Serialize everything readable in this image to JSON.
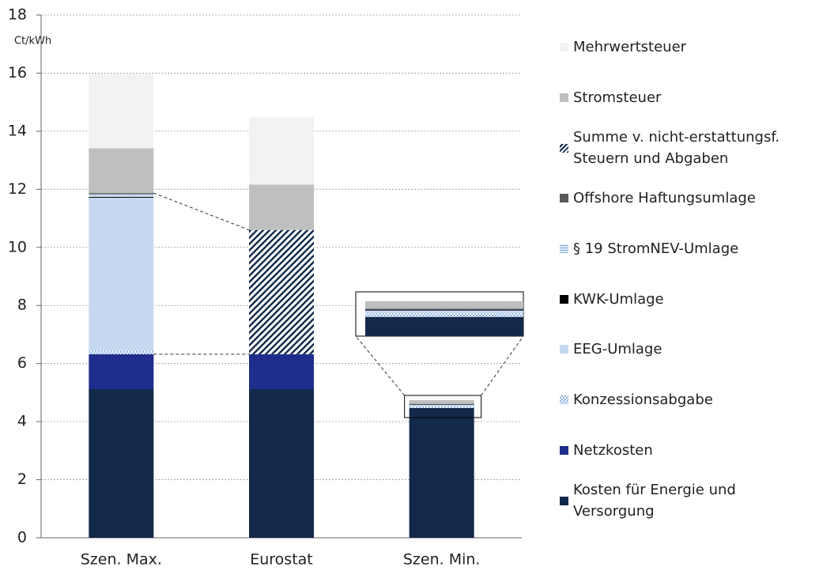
{
  "chart_data": {
    "type": "stacked-bar",
    "y_label": "Ct/kWh",
    "categories": [
      "Szen. Max.",
      "Eurostat",
      "Szen. Min."
    ],
    "series": [
      {
        "name": "Kosten für Energie und Versorgung",
        "color": "#13294b",
        "values": [
          5.12,
          5.12,
          4.47
        ]
      },
      {
        "name": "Netzkosten",
        "color": "#1f2e8c",
        "values": [
          1.2,
          1.2,
          null
        ]
      },
      {
        "name": "Konzessionsabgabe",
        "color": "#8db4e2",
        "pattern": "checker",
        "values": [
          0.11,
          null,
          0.06
        ]
      },
      {
        "name": "EEG-Umlage",
        "color": "#c6d9f0",
        "values": [
          5.28,
          null,
          0.05
        ]
      },
      {
        "name": "KWK-Umlage",
        "color": "#000000",
        "values": [
          0.03,
          null,
          0.02
        ]
      },
      {
        "name": "§ 19 StromNEV-Umlage",
        "color": "#8db4e2",
        "pattern": "dots",
        "values": [
          0.09,
          null,
          0.01
        ]
      },
      {
        "name": "Offshore Haftungsumlage",
        "color": "#595959",
        "values": [
          0.04,
          null,
          0.01
        ]
      },
      {
        "name": "Summe v. nicht-erstattungsf. Steuern und Abgaben",
        "color": "#13294b",
        "pattern": "hatch",
        "values": [
          null,
          4.28,
          null
        ]
      },
      {
        "name": "Stromsteuer",
        "color": "#bfbfbf",
        "values": [
          1.54,
          1.56,
          0.12
        ]
      },
      {
        "name": "Mehrwertsteuer",
        "color": "#f2f2f2",
        "values": [
          2.56,
          2.32,
          null
        ]
      }
    ],
    "ylim": [
      0,
      18
    ],
    "yticks": [
      0,
      2,
      4,
      6,
      8,
      10,
      12,
      14,
      16,
      18
    ],
    "grid": true
  }
}
